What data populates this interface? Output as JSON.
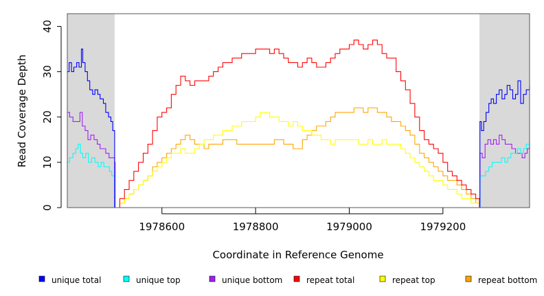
{
  "chart_data": {
    "type": "line",
    "xlabel": "Coordinate in Reference Genome",
    "ylabel": "Read Coverage Depth",
    "xlim": [
      1978398,
      1979385
    ],
    "ylim": [
      0,
      42.8
    ],
    "x_ticks": [
      1978600,
      1978800,
      1979000,
      1979200
    ],
    "x_tick_labels": [
      "1978600",
      "1978800",
      "1979000",
      "1979200"
    ],
    "y_ticks": [
      0,
      10,
      20,
      30,
      40
    ],
    "y_tick_labels": [
      "0",
      "10",
      "20",
      "30",
      "40"
    ],
    "shaded_regions": [
      [
        1978398,
        1978499
      ],
      [
        1979278,
        1979385
      ]
    ],
    "shade_color": "#d9d9d9",
    "grid": false,
    "legend_position": "bottom",
    "series": [
      {
        "name": "unique total",
        "color": "#0000ff",
        "x": [
          1978398,
          1978402,
          1978407,
          1978412,
          1978418,
          1978423,
          1978428,
          1978431,
          1978436,
          1978441,
          1978446,
          1978452,
          1978457,
          1978463,
          1978468,
          1978475,
          1978480,
          1978486,
          1978491,
          1978495,
          1978498,
          1978499,
          1978500,
          1979278,
          1979279,
          1979282,
          1979287,
          1979292,
          1979298,
          1979303,
          1979308,
          1979314,
          1979320,
          1979326,
          1979332,
          1979337,
          1979343,
          1979349,
          1979355,
          1979360,
          1979366,
          1979372,
          1979378,
          1979385
        ],
        "y": [
          30,
          32,
          30,
          31,
          32,
          31,
          35,
          32,
          30,
          28,
          26,
          25,
          26,
          25,
          24,
          23,
          21,
          20,
          19,
          17,
          17,
          0,
          0,
          0,
          19,
          17,
          19,
          21,
          23,
          24,
          23,
          25,
          26,
          24,
          25,
          27,
          26,
          24,
          25,
          28,
          23,
          25,
          26,
          27
        ]
      },
      {
        "name": "unique top",
        "color": "#00ffff",
        "x": [
          1978398,
          1978403,
          1978410,
          1978416,
          1978421,
          1978426,
          1978431,
          1978437,
          1978443,
          1978450,
          1978457,
          1978464,
          1978470,
          1978476,
          1978482,
          1978488,
          1978493,
          1978498,
          1978499,
          1978500,
          1979278,
          1979279,
          1979285,
          1979291,
          1979298,
          1979305,
          1979311,
          1979318,
          1979325,
          1979332,
          1979338,
          1979345,
          1979352,
          1979359,
          1979366,
          1979372,
          1979378,
          1979385
        ],
        "y": [
          10,
          11,
          12,
          13,
          14,
          12,
          11,
          12,
          10,
          11,
          10,
          9,
          10,
          9,
          9,
          8,
          7,
          7,
          0,
          0,
          0,
          7,
          7,
          8,
          9,
          10,
          10,
          10,
          11,
          10,
          11,
          12,
          12,
          13,
          12,
          13,
          14,
          15
        ]
      },
      {
        "name": "unique bottom",
        "color": "#a020f0",
        "x": [
          1978398,
          1978403,
          1978410,
          1978418,
          1978425,
          1978430,
          1978436,
          1978442,
          1978448,
          1978455,
          1978462,
          1978468,
          1978474,
          1978480,
          1978487,
          1978494,
          1978499,
          1978500,
          1979278,
          1979279,
          1979284,
          1979290,
          1979296,
          1979302,
          1979308,
          1979314,
          1979320,
          1979326,
          1979333,
          1979340,
          1979347,
          1979355,
          1979362,
          1979369,
          1979375,
          1979380,
          1979385
        ],
        "y": [
          21,
          20,
          19,
          19,
          21,
          18,
          17,
          15,
          16,
          15,
          14,
          13,
          13,
          12,
          11,
          11,
          10,
          0,
          0,
          12,
          11,
          14,
          15,
          14,
          15,
          14,
          16,
          15,
          14,
          14,
          13,
          12,
          12,
          11,
          12,
          13,
          14
        ]
      },
      {
        "name": "repeat total",
        "color": "#ff0000",
        "x": [
          1978500,
          1978510,
          1978520,
          1978530,
          1978540,
          1978550,
          1978560,
          1978570,
          1978580,
          1978590,
          1978600,
          1978610,
          1978620,
          1978630,
          1978640,
          1978650,
          1978660,
          1978670,
          1978680,
          1978690,
          1978700,
          1978710,
          1978720,
          1978730,
          1978740,
          1978750,
          1978760,
          1978770,
          1978780,
          1978790,
          1978800,
          1978810,
          1978820,
          1978830,
          1978840,
          1978850,
          1978860,
          1978870,
          1978880,
          1978890,
          1978900,
          1978910,
          1978920,
          1978930,
          1978940,
          1978950,
          1978960,
          1978970,
          1978980,
          1978990,
          1979000,
          1979010,
          1979020,
          1979030,
          1979040,
          1979050,
          1979060,
          1979070,
          1979080,
          1979090,
          1979100,
          1979110,
          1979120,
          1979130,
          1979140,
          1979150,
          1979160,
          1979170,
          1979180,
          1979190,
          1979200,
          1979210,
          1979220,
          1979230,
          1979240,
          1979250,
          1979260,
          1979270,
          1979278
        ],
        "y": [
          0,
          2,
          4,
          6,
          8,
          10,
          12,
          14,
          17,
          20,
          21,
          22,
          25,
          27,
          29,
          28,
          27,
          28,
          28,
          28,
          29,
          30,
          31,
          32,
          32,
          33,
          33,
          34,
          34,
          34,
          35,
          35,
          35,
          34,
          35,
          34,
          33,
          32,
          32,
          31,
          32,
          33,
          32,
          31,
          31,
          32,
          33,
          34,
          35,
          35,
          36,
          37,
          36,
          35,
          36,
          37,
          36,
          34,
          33,
          33,
          30,
          28,
          26,
          23,
          20,
          17,
          15,
          14,
          13,
          12,
          10,
          8,
          7,
          6,
          5,
          4,
          3,
          2,
          0
        ]
      },
      {
        "name": "repeat top",
        "color": "#ffff00",
        "x": [
          1978500,
          1978510,
          1978520,
          1978530,
          1978540,
          1978550,
          1978560,
          1978570,
          1978580,
          1978590,
          1978600,
          1978610,
          1978620,
          1978630,
          1978640,
          1978650,
          1978660,
          1978670,
          1978680,
          1978690,
          1978700,
          1978710,
          1978720,
          1978730,
          1978740,
          1978750,
          1978760,
          1978770,
          1978780,
          1978790,
          1978800,
          1978810,
          1978820,
          1978830,
          1978840,
          1978850,
          1978860,
          1978870,
          1978880,
          1978890,
          1978900,
          1978910,
          1978920,
          1978930,
          1978940,
          1978950,
          1978960,
          1978970,
          1978980,
          1978990,
          1979000,
          1979010,
          1979020,
          1979030,
          1979040,
          1979050,
          1979060,
          1979070,
          1979080,
          1979090,
          1979100,
          1979110,
          1979120,
          1979130,
          1979140,
          1979150,
          1979160,
          1979170,
          1979180,
          1979190,
          1979200,
          1979210,
          1979220,
          1979230,
          1979240,
          1979250,
          1979260,
          1979270,
          1979278
        ],
        "y": [
          0,
          1,
          2,
          3,
          4,
          5,
          6,
          7,
          8,
          9,
          10,
          11,
          12,
          12,
          13,
          12,
          12,
          13,
          14,
          15,
          15,
          16,
          16,
          17,
          17,
          18,
          18,
          19,
          19,
          19,
          20,
          21,
          21,
          20,
          20,
          19,
          19,
          18,
          19,
          18,
          17,
          17,
          16,
          16,
          15,
          15,
          14,
          15,
          15,
          15,
          15,
          15,
          14,
          14,
          15,
          14,
          14,
          15,
          14,
          14,
          14,
          13,
          12,
          11,
          10,
          9,
          8,
          7,
          6,
          6,
          5,
          4,
          4,
          3,
          2,
          2,
          1,
          1,
          0
        ]
      },
      {
        "name": "repeat bottom",
        "color": "#ffa500",
        "x": [
          1978500,
          1978510,
          1978520,
          1978530,
          1978540,
          1978550,
          1978560,
          1978570,
          1978580,
          1978590,
          1978600,
          1978610,
          1978620,
          1978630,
          1978640,
          1978650,
          1978660,
          1978670,
          1978680,
          1978690,
          1978700,
          1978710,
          1978720,
          1978730,
          1978740,
          1978750,
          1978760,
          1978770,
          1978780,
          1978790,
          1978800,
          1978810,
          1978820,
          1978830,
          1978840,
          1978850,
          1978860,
          1978870,
          1978880,
          1978890,
          1978900,
          1978910,
          1978920,
          1978930,
          1978940,
          1978950,
          1978960,
          1978970,
          1978980,
          1978990,
          1979000,
          1979010,
          1979020,
          1979030,
          1979040,
          1979050,
          1979060,
          1979070,
          1979080,
          1979090,
          1979100,
          1979110,
          1979120,
          1979130,
          1979140,
          1979150,
          1979160,
          1979170,
          1979180,
          1979190,
          1979200,
          1979210,
          1979220,
          1979230,
          1979240,
          1979250,
          1979260,
          1979270,
          1979278
        ],
        "y": [
          0,
          1,
          2,
          3,
          4,
          5,
          6,
          7,
          9,
          10,
          11,
          12,
          13,
          14,
          15,
          16,
          15,
          14,
          14,
          13,
          14,
          14,
          14,
          15,
          15,
          15,
          14,
          14,
          14,
          14,
          14,
          14,
          14,
          14,
          15,
          15,
          14,
          14,
          13,
          13,
          15,
          16,
          17,
          18,
          18,
          19,
          20,
          21,
          21,
          21,
          21,
          22,
          22,
          21,
          22,
          22,
          21,
          21,
          20,
          19,
          19,
          18,
          17,
          16,
          14,
          12,
          11,
          10,
          9,
          8,
          7,
          6,
          6,
          5,
          4,
          3,
          2,
          1,
          0
        ]
      }
    ]
  }
}
